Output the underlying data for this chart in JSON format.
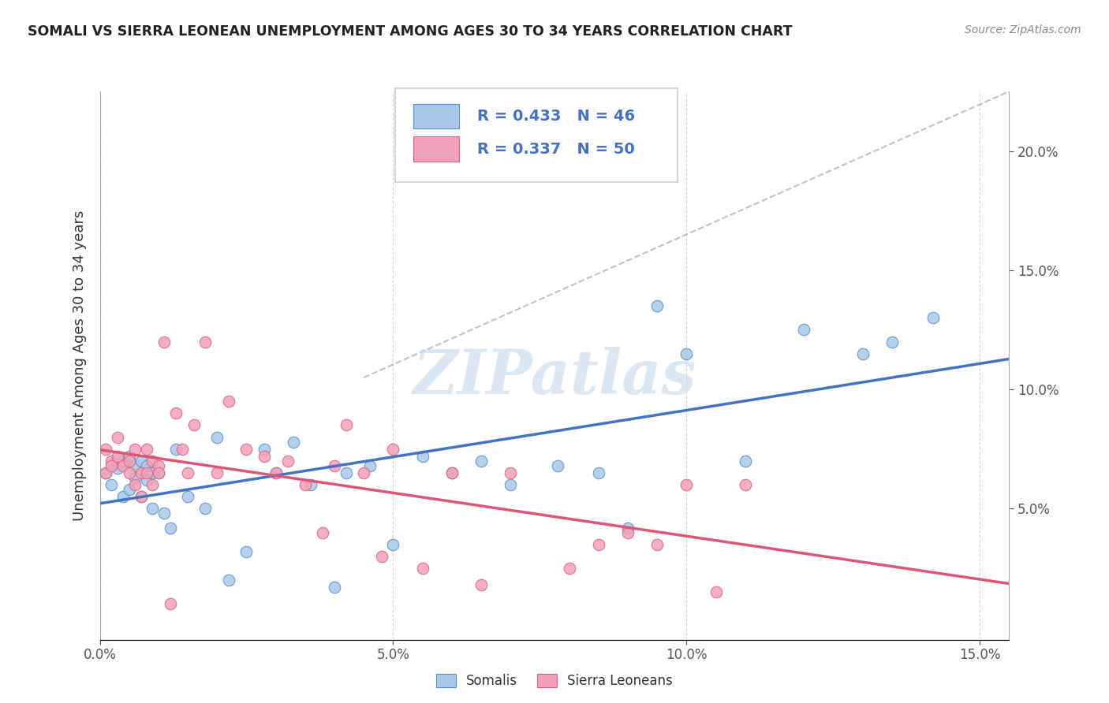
{
  "title": "SOMALI VS SIERRA LEONEAN UNEMPLOYMENT AMONG AGES 30 TO 34 YEARS CORRELATION CHART",
  "source": "Source: ZipAtlas.com",
  "ylabel": "Unemployment Among Ages 30 to 34 years",
  "xlim": [
    0.0,
    0.155
  ],
  "ylim": [
    -0.005,
    0.225
  ],
  "xticks": [
    0.0,
    0.05,
    0.1,
    0.15
  ],
  "xtick_labels": [
    "0.0%",
    "5.0%",
    "10.0%",
    "15.0%"
  ],
  "yticks_right": [
    0.05,
    0.1,
    0.15,
    0.2
  ],
  "ytick_labels_right": [
    "5.0%",
    "10.0%",
    "15.0%",
    "20.0%"
  ],
  "somali_color": "#a8c8e8",
  "sierra_color": "#f0a0b8",
  "somali_edge_color": "#5590d0",
  "sierra_edge_color": "#e06080",
  "somali_line_color": "#4472c4",
  "sierra_line_color": "#e05575",
  "somali_R": 0.433,
  "somali_N": 46,
  "sierra_R": 0.337,
  "sierra_N": 50,
  "legend_color": "#4472c4",
  "watermark": "ZIPatlas",
  "watermark_color": "#c5d8ed",
  "background_color": "#ffffff",
  "grid_color": "#cccccc",
  "somali_x": [
    0.001,
    0.002,
    0.003,
    0.004,
    0.004,
    0.005,
    0.005,
    0.006,
    0.006,
    0.007,
    0.007,
    0.008,
    0.008,
    0.009,
    0.009,
    0.01,
    0.011,
    0.012,
    0.013,
    0.015,
    0.018,
    0.02,
    0.022,
    0.025,
    0.028,
    0.03,
    0.033,
    0.036,
    0.04,
    0.042,
    0.046,
    0.05,
    0.055,
    0.06,
    0.065,
    0.07,
    0.078,
    0.085,
    0.09,
    0.095,
    0.1,
    0.11,
    0.12,
    0.13,
    0.135,
    0.142
  ],
  "somali_y": [
    0.065,
    0.06,
    0.067,
    0.055,
    0.07,
    0.058,
    0.072,
    0.063,
    0.068,
    0.07,
    0.055,
    0.062,
    0.068,
    0.065,
    0.05,
    0.065,
    0.048,
    0.042,
    0.075,
    0.055,
    0.05,
    0.08,
    0.02,
    0.032,
    0.075,
    0.065,
    0.078,
    0.06,
    0.017,
    0.065,
    0.068,
    0.035,
    0.072,
    0.065,
    0.07,
    0.06,
    0.068,
    0.065,
    0.042,
    0.135,
    0.115,
    0.07,
    0.125,
    0.115,
    0.12,
    0.13
  ],
  "sierra_x": [
    0.001,
    0.001,
    0.002,
    0.002,
    0.003,
    0.003,
    0.004,
    0.005,
    0.005,
    0.006,
    0.006,
    0.007,
    0.007,
    0.008,
    0.008,
    0.009,
    0.009,
    0.01,
    0.01,
    0.011,
    0.012,
    0.013,
    0.014,
    0.015,
    0.016,
    0.018,
    0.02,
    0.022,
    0.025,
    0.028,
    0.03,
    0.032,
    0.035,
    0.038,
    0.04,
    0.042,
    0.045,
    0.048,
    0.05,
    0.055,
    0.06,
    0.065,
    0.07,
    0.08,
    0.085,
    0.09,
    0.095,
    0.1,
    0.105,
    0.11
  ],
  "sierra_y": [
    0.065,
    0.075,
    0.07,
    0.068,
    0.08,
    0.072,
    0.068,
    0.065,
    0.07,
    0.075,
    0.06,
    0.065,
    0.055,
    0.075,
    0.065,
    0.07,
    0.06,
    0.068,
    0.065,
    0.12,
    0.01,
    0.09,
    0.075,
    0.065,
    0.085,
    0.12,
    0.065,
    0.095,
    0.075,
    0.072,
    0.065,
    0.07,
    0.06,
    0.04,
    0.068,
    0.085,
    0.065,
    0.03,
    0.075,
    0.025,
    0.065,
    0.018,
    0.065,
    0.025,
    0.035,
    0.04,
    0.035,
    0.06,
    0.015,
    0.06
  ]
}
